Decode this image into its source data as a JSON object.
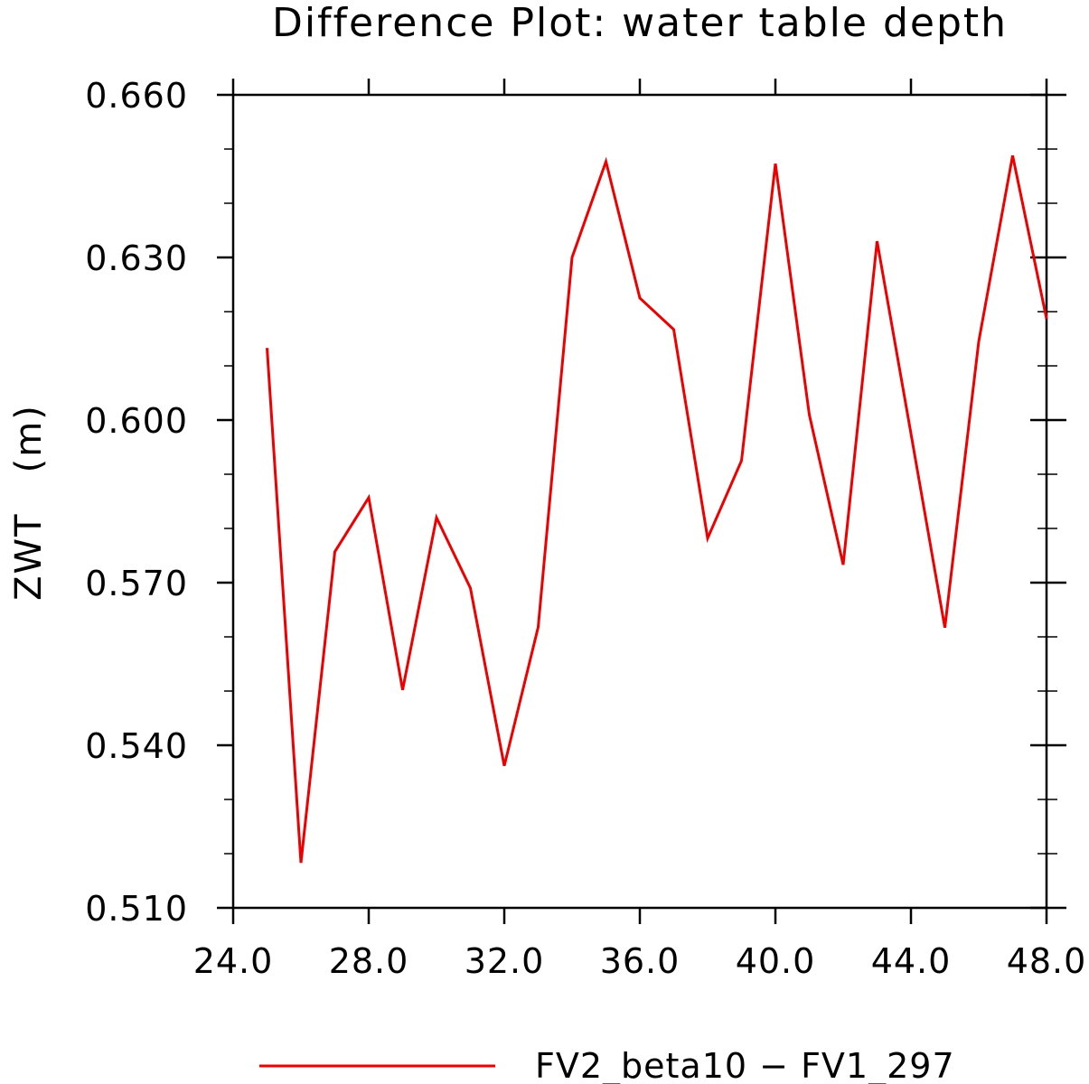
{
  "chart_data": {
    "type": "line",
    "title": "Difference Plot: water table depth",
    "xlabel": "",
    "ylabel": "ZWT   (m)",
    "xlim": [
      24.0,
      48.0
    ],
    "ylim": [
      0.51,
      0.66
    ],
    "x_ticks": [
      "24.0",
      "28.0",
      "32.0",
      "36.0",
      "40.0",
      "44.0",
      "48.0"
    ],
    "y_ticks": [
      "0.510",
      "0.540",
      "0.570",
      "0.600",
      "0.630",
      "0.660"
    ],
    "grid": false,
    "legend_position": "bottom-center",
    "series": [
      {
        "name": "FV2_beta10 − FV1_297",
        "color": "#ee0000",
        "x": [
          25,
          26,
          27,
          28,
          29,
          30,
          31,
          32,
          33,
          34,
          35,
          36,
          37,
          38,
          39,
          40,
          41,
          42,
          43,
          44,
          45,
          46,
          47,
          48
        ],
        "y": [
          0.6133,
          0.5183,
          0.5757,
          0.5857,
          0.5502,
          0.582,
          0.569,
          0.5362,
          0.5618,
          0.63,
          0.6477,
          0.6225,
          0.6167,
          0.5782,
          0.5925,
          0.6473,
          0.601,
          0.5733,
          0.633,
          0.5975,
          0.5617,
          0.6145,
          0.6488,
          0.6187
        ]
      }
    ]
  }
}
